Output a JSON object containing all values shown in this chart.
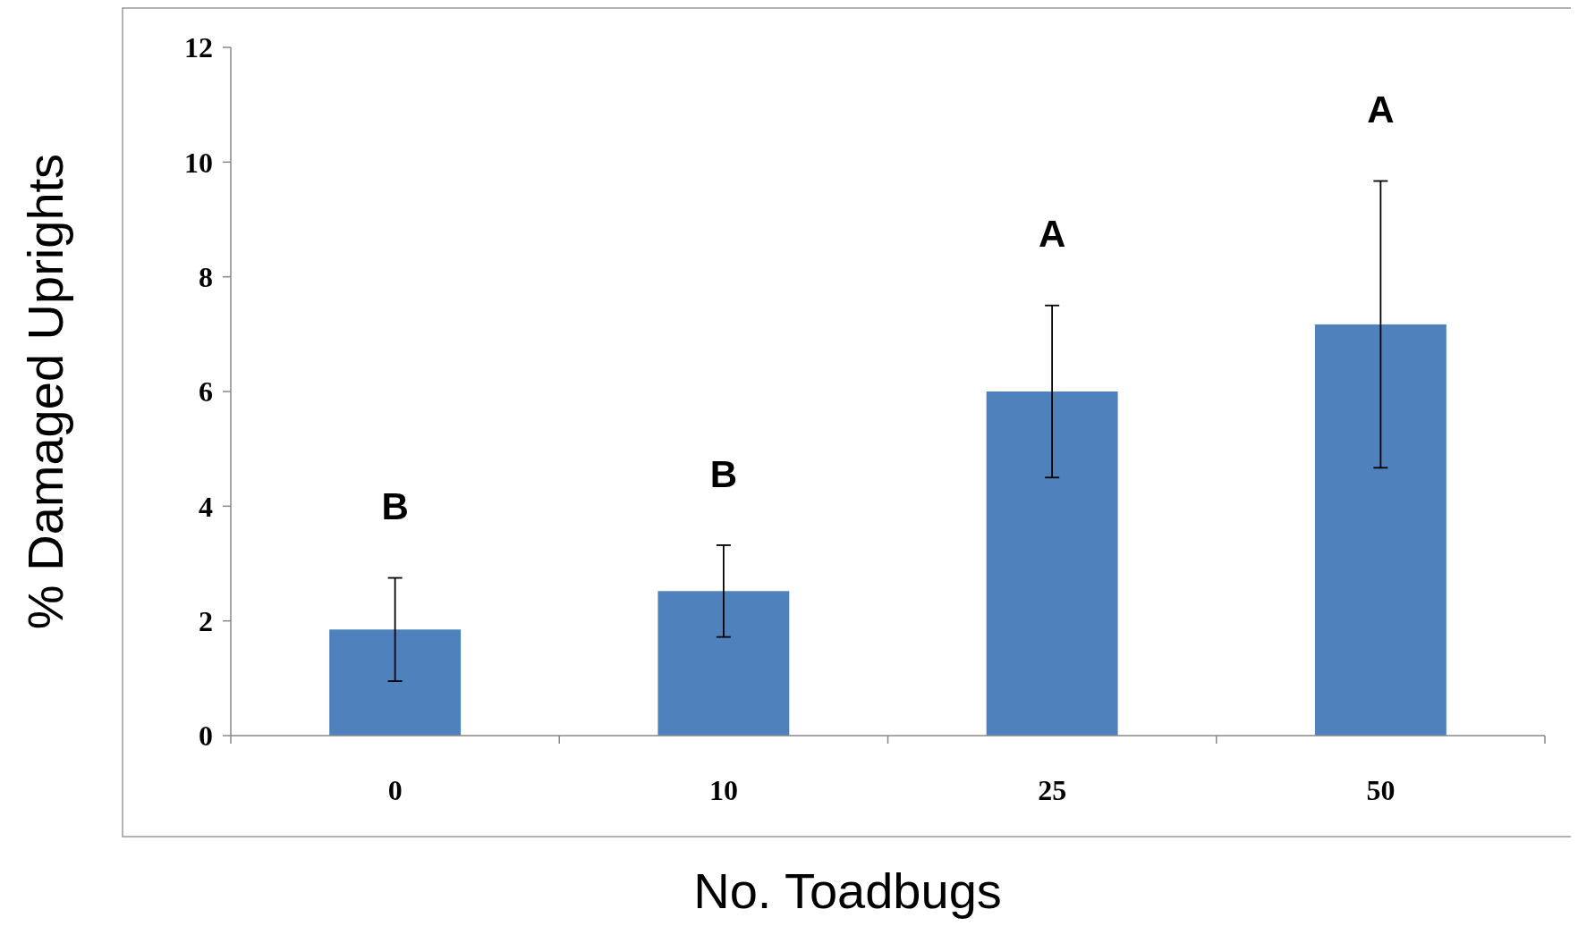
{
  "chart_data": {
    "type": "bar",
    "xlabel": "No. Toadbugs",
    "ylabel": "% Damaged Uprights",
    "categories": [
      "0",
      "10",
      "25",
      "50"
    ],
    "values": [
      1.85,
      2.52,
      6.0,
      7.17
    ],
    "errors": [
      0.9,
      0.8,
      1.5,
      2.5
    ],
    "color": "#4f81bd",
    "ylim": [
      0,
      12
    ],
    "yticks": [
      0,
      2,
      4,
      6,
      8,
      10,
      12
    ],
    "grid": false,
    "annotations": [
      "B",
      "B",
      "A",
      "A"
    ]
  }
}
